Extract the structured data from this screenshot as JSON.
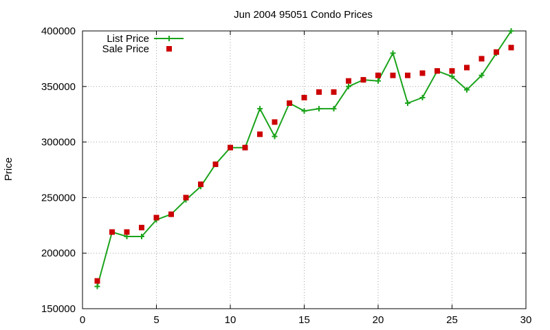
{
  "chart_data": {
    "type": "line",
    "title": "Jun 2004 95051 Condo Prices",
    "xlabel": "",
    "ylabel": "Price",
    "xlim": [
      0,
      30
    ],
    "ylim": [
      150000,
      400000
    ],
    "xticks": [
      0,
      5,
      10,
      15,
      20,
      25,
      30
    ],
    "yticks": [
      150000,
      200000,
      250000,
      300000,
      350000,
      400000
    ],
    "grid": true,
    "legend_position": "top-left",
    "series": [
      {
        "name": "List Price",
        "style": "line+cross",
        "color": "#1aa31a",
        "x": [
          1,
          2,
          3,
          4,
          5,
          6,
          7,
          8,
          9,
          10,
          11,
          12,
          13,
          14,
          15,
          16,
          17,
          18,
          19,
          20,
          21,
          22,
          23,
          24,
          25,
          26,
          27,
          28,
          29
        ],
        "values": [
          170000,
          219000,
          215000,
          215000,
          230000,
          235000,
          248000,
          260000,
          280000,
          295000,
          295000,
          330000,
          305000,
          335000,
          328000,
          330000,
          330000,
          350000,
          356000,
          355000,
          380000,
          335000,
          340000,
          364000,
          359000,
          347000,
          360000,
          380000,
          400000
        ]
      },
      {
        "name": "Sale Price",
        "style": "square-points",
        "color": "#cc0000",
        "x": [
          1,
          2,
          3,
          4,
          5,
          6,
          7,
          8,
          9,
          10,
          11,
          12,
          13,
          14,
          15,
          16,
          17,
          18,
          19,
          20,
          21,
          22,
          23,
          24,
          25,
          26,
          27,
          28,
          29
        ],
        "values": [
          175000,
          219000,
          219000,
          223000,
          232000,
          235000,
          250000,
          262000,
          280000,
          295000,
          295000,
          307000,
          318000,
          335000,
          340000,
          345000,
          345000,
          355000,
          356000,
          360000,
          360000,
          360000,
          362000,
          364000,
          364000,
          367000,
          375000,
          381000,
          385000
        ]
      }
    ]
  }
}
